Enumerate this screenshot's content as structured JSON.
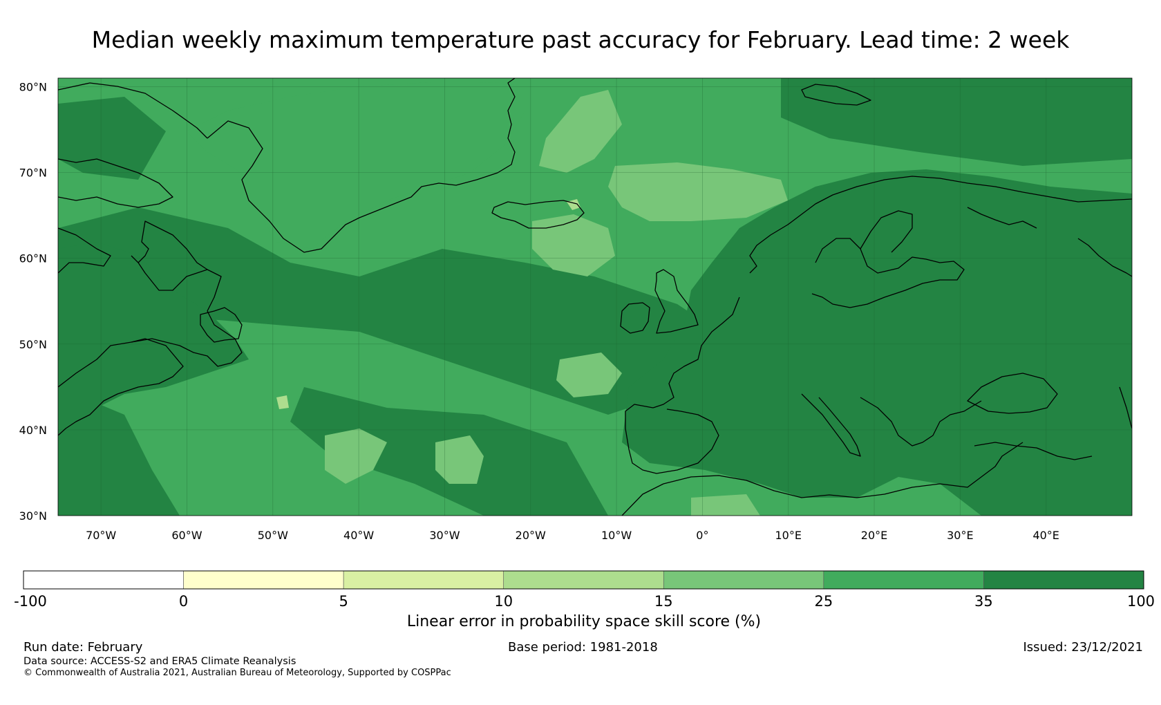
{
  "title": "Median weekly maximum temperature past accuracy for February. Lead time: 2 week",
  "map": {
    "region": "North Atlantic and Europe",
    "lon_range": [
      -75,
      50
    ],
    "lat_range": [
      30,
      81
    ],
    "lat_labels": [
      "80°N",
      "70°N",
      "60°N",
      "50°N",
      "40°N",
      "30°N"
    ],
    "lon_labels": [
      "70°W",
      "60°W",
      "50°W",
      "40°W",
      "30°W",
      "20°W",
      "10°W",
      "0°",
      "10°E",
      "20°E",
      "30°E",
      "40°E"
    ],
    "ocean_skill_class": "25-35",
    "land_skill_class": "35-100"
  },
  "colorbar": {
    "label": "Linear error in probability space skill score (%)",
    "ticks": [
      "-100",
      "0",
      "5",
      "10",
      "15",
      "25",
      "35",
      "100"
    ],
    "colors": [
      "#ffffff",
      "#ffffcc",
      "#d9f0a3",
      "#addd8e",
      "#78c679",
      "#41ab5d",
      "#238443"
    ]
  },
  "footer": {
    "run_date": "Run date: February",
    "base_period": "Base period: 1981-2018",
    "issued": "Issued: 23/12/2021",
    "data_source": "Data source: ACCESS-S2 and ERA5 Climate Reanalysis",
    "copyright": "© Commonwealth of Australia 2021, Australian Bureau of Meteorology, Supported by COSPPac"
  }
}
